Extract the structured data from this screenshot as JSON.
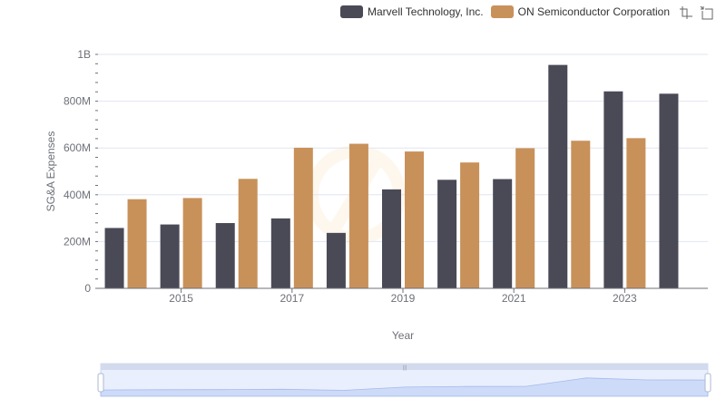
{
  "toolbox": {
    "zoom_icon": "zoom-icon",
    "restore_icon": "restore-icon"
  },
  "chart_data": {
    "type": "bar",
    "xlabel": "Year",
    "ylabel": "SG&A Expenses",
    "ylim": [
      0,
      1000000000
    ],
    "y_ticks": [
      "0",
      "200M",
      "400M",
      "600M",
      "800M",
      "1B"
    ],
    "y_tick_values": [
      0,
      200000000,
      400000000,
      600000000,
      800000000,
      1000000000
    ],
    "categories": [
      "2014",
      "2015",
      "2016",
      "2017",
      "2018",
      "2019",
      "2020",
      "2021",
      "2022",
      "2023",
      "2024"
    ],
    "x_tick_labels": [
      "",
      "2015",
      "",
      "2017",
      "",
      "2019",
      "",
      "2021",
      "",
      "2023",
      ""
    ],
    "grid": true,
    "legend_position": "top-right",
    "series": [
      {
        "name": "Marvell Technology, Inc.",
        "color": "#4a4a57",
        "values": [
          258000000,
          273000000,
          279000000,
          299000000,
          237000000,
          423000000,
          464000000,
          467000000,
          955000000,
          842000000,
          832000000
        ]
      },
      {
        "name": "ON Semiconductor Corporation",
        "color": "#c8915a",
        "values": [
          381000000,
          386000000,
          468000000,
          601000000,
          618000000,
          585000000,
          538000000,
          599000000,
          631000000,
          642000000,
          null
        ]
      }
    ]
  }
}
